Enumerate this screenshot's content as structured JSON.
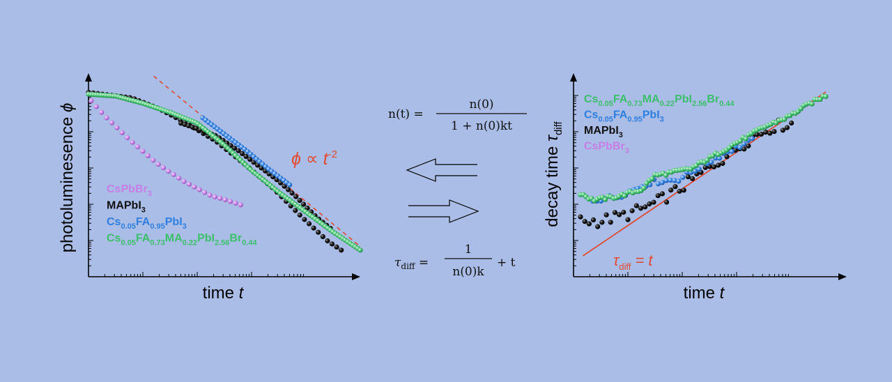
{
  "colors": {
    "background": "#a9bde6",
    "cspbbr3": "#c77fe6",
    "mapbi3": "#111111",
    "cs_fa": "#2f7fe0",
    "cs_fa_ma": "#3cbf6b",
    "fit": "#e24a33"
  },
  "equations": {
    "n_lhs": "n(t) =",
    "n_num": "n(0)",
    "n_den": "1 + n(0)kt",
    "tau_lhs_base": "τ",
    "tau_lhs_sub": "diff",
    "tau_eq": "=",
    "tau_num": "1",
    "tau_den": "n(0)k",
    "tau_rhs": "+ t"
  },
  "chart_data": [
    {
      "type": "scatter",
      "xlabel_base": "time ",
      "xlabel_var": "t",
      "ylabel_base": "photoluminesence ",
      "ylabel_var": "ϕ",
      "xscale": "log",
      "yscale": "log",
      "xlim": [
        0,
        1
      ],
      "ylim": [
        0,
        1
      ],
      "grid": false,
      "annotation": {
        "text": "ϕ ∝ t",
        "exp": "-2"
      },
      "guide_line": {
        "style": "dashed",
        "from": [
          0.24,
          1.08
        ],
        "to": [
          1.0,
          0.14
        ]
      },
      "legend": [
        {
          "base": "CsPbBr",
          "parts": [
            [
              "3",
              true
            ]
          ],
          "key": "cspbbr3"
        },
        {
          "base": "MAPbI",
          "parts": [
            [
              "3",
              true
            ]
          ],
          "key": "mapbi3"
        },
        {
          "base": "Cs",
          "parts": [
            [
              "0.05",
              true
            ],
            [
              "FA",
              false
            ],
            [
              "0.95",
              true
            ],
            [
              "PbI",
              false
            ],
            [
              "3",
              true
            ]
          ],
          "key": "cs_fa"
        },
        {
          "base": "Cs",
          "parts": [
            [
              "0.05",
              true
            ],
            [
              "FA",
              false
            ],
            [
              "0.73",
              true
            ],
            [
              "MA",
              false
            ],
            [
              "0.22",
              true
            ],
            [
              "PbI",
              false
            ],
            [
              "2.56",
              true
            ],
            [
              "Br",
              false
            ],
            [
              "0.44",
              true
            ]
          ],
          "key": "cs_fa_ma"
        }
      ],
      "series": [
        {
          "key": "cspbbr3",
          "n": 30,
          "x0": 0.01,
          "x1": 0.56,
          "xp": 1.0,
          "y": [
            [
              0.0,
              0.96
            ],
            [
              0.06,
              0.86
            ],
            [
              0.15,
              0.73
            ],
            [
              0.25,
              0.6
            ],
            [
              0.35,
              0.5
            ],
            [
              0.45,
              0.42
            ],
            [
              0.5,
              0.4
            ],
            [
              0.56,
              0.37
            ]
          ]
        },
        {
          "key": "mapbi3",
          "n": 56,
          "x0": 0.0,
          "x1": 0.93,
          "xp": 1.0,
          "y": [
            [
              0.0,
              0.99
            ],
            [
              0.16,
              0.96
            ],
            [
              0.26,
              0.9
            ],
            [
              0.36,
              0.82
            ],
            [
              0.47,
              0.72
            ],
            [
              0.57,
              0.6
            ],
            [
              0.68,
              0.46
            ],
            [
              0.78,
              0.31
            ],
            [
              0.83,
              0.24
            ],
            [
              0.88,
              0.17
            ],
            [
              0.93,
              0.12
            ]
          ]
        },
        {
          "key": "mapbi3",
          "n": 40,
          "x0": 0.34,
          "x1": 0.89,
          "xp": 1.0,
          "y": [
            [
              0.34,
              0.82
            ],
            [
              0.4,
              0.79
            ],
            [
              0.47,
              0.75
            ],
            [
              0.55,
              0.67
            ],
            [
              0.63,
              0.58
            ],
            [
              0.7,
              0.5
            ],
            [
              0.76,
              0.42
            ],
            [
              0.8,
              0.36
            ],
            [
              0.84,
              0.3
            ],
            [
              0.89,
              0.24
            ]
          ]
        },
        {
          "key": "cs_fa",
          "n": 30,
          "x0": 0.42,
          "x1": 0.74,
          "xp": 1.0,
          "y": [
            [
              0.42,
              0.85
            ],
            [
              0.5,
              0.76
            ],
            [
              0.58,
              0.67
            ],
            [
              0.66,
              0.57
            ],
            [
              0.74,
              0.48
            ]
          ]
        },
        {
          "key": "cs_fa_ma",
          "n": 110,
          "x0": 0.0,
          "x1": 1.0,
          "xp": 1.0,
          "y": [
            [
              0.0,
              0.98
            ],
            [
              0.1,
              0.97
            ],
            [
              0.2,
              0.93
            ],
            [
              0.3,
              0.88
            ],
            [
              0.4,
              0.82
            ],
            [
              0.5,
              0.7
            ],
            [
              0.6,
              0.56
            ],
            [
              0.7,
              0.44
            ],
            [
              0.8,
              0.33
            ],
            [
              0.9,
              0.22
            ],
            [
              1.0,
              0.12
            ]
          ]
        }
      ]
    },
    {
      "type": "scatter",
      "xlabel_base": "time ",
      "xlabel_var": "t",
      "ylabel_base": "decay time ",
      "ylabel_var": "τ",
      "ylabel_sub": "diff",
      "xscale": "log",
      "yscale": "log",
      "xlim": [
        0,
        1
      ],
      "ylim": [
        0,
        1
      ],
      "grid": false,
      "annotation": {
        "text": "τ",
        "sub": "diff",
        "rest": " = t"
      },
      "fit_line": {
        "from": [
          0.01,
          0.06
        ],
        "to": [
          1.0,
          1.0
        ]
      },
      "legend": [
        {
          "base": "Cs",
          "parts": [
            [
              "0.05",
              true
            ],
            [
              "FA",
              false
            ],
            [
              "0.73",
              true
            ],
            [
              "MA",
              false
            ],
            [
              "0.22",
              true
            ],
            [
              "PbI",
              false
            ],
            [
              "2.56",
              true
            ],
            [
              "Br",
              false
            ],
            [
              "0.44",
              true
            ]
          ],
          "key": "cs_fa_ma"
        },
        {
          "base": "Cs",
          "parts": [
            [
              "0.05",
              true
            ],
            [
              "FA",
              false
            ],
            [
              "0.95",
              true
            ],
            [
              "PbI",
              false
            ],
            [
              "3",
              true
            ]
          ],
          "key": "cs_fa"
        },
        {
          "base": "MAPbI",
          "parts": [
            [
              "3",
              true
            ]
          ],
          "key": "mapbi3"
        },
        {
          "base": "CsPbBr",
          "parts": [
            [
              "3",
              true
            ]
          ],
          "key": "cspbbr3"
        }
      ],
      "series": [
        {
          "key": "mapbi3",
          "n": 50,
          "x0": 0.0,
          "x1": 0.86,
          "xp": 1.0,
          "y": [
            [
              0.0,
              0.26
            ],
            [
              0.08,
              0.26
            ],
            [
              0.2,
              0.3
            ],
            [
              0.3,
              0.36
            ],
            [
              0.4,
              0.44
            ],
            [
              0.5,
              0.54
            ],
            [
              0.6,
              0.64
            ],
            [
              0.7,
              0.74
            ],
            [
              0.78,
              0.8
            ],
            [
              0.86,
              0.82
            ]
          ],
          "jitter": 0.035
        },
        {
          "key": "cs_fa",
          "n": 40,
          "x0": 0.05,
          "x1": 0.7,
          "xp": 1.0,
          "y": [
            [
              0.05,
              0.38
            ],
            [
              0.15,
              0.4
            ],
            [
              0.28,
              0.48
            ],
            [
              0.4,
              0.5
            ],
            [
              0.5,
              0.58
            ],
            [
              0.6,
              0.66
            ],
            [
              0.7,
              0.72
            ]
          ],
          "jitter": 0.015
        },
        {
          "key": "cs_fa_ma",
          "n": 90,
          "x0": 0.0,
          "x1": 1.0,
          "xp": 1.0,
          "y": [
            [
              0.0,
              0.42
            ],
            [
              0.05,
              0.38
            ],
            [
              0.15,
              0.4
            ],
            [
              0.25,
              0.44
            ],
            [
              0.3,
              0.52
            ],
            [
              0.38,
              0.54
            ],
            [
              0.45,
              0.56
            ],
            [
              0.55,
              0.64
            ],
            [
              0.65,
              0.72
            ],
            [
              0.75,
              0.8
            ],
            [
              0.85,
              0.86
            ],
            [
              0.93,
              0.93
            ],
            [
              1.0,
              0.98
            ]
          ],
          "jitter": 0.01
        }
      ]
    }
  ]
}
